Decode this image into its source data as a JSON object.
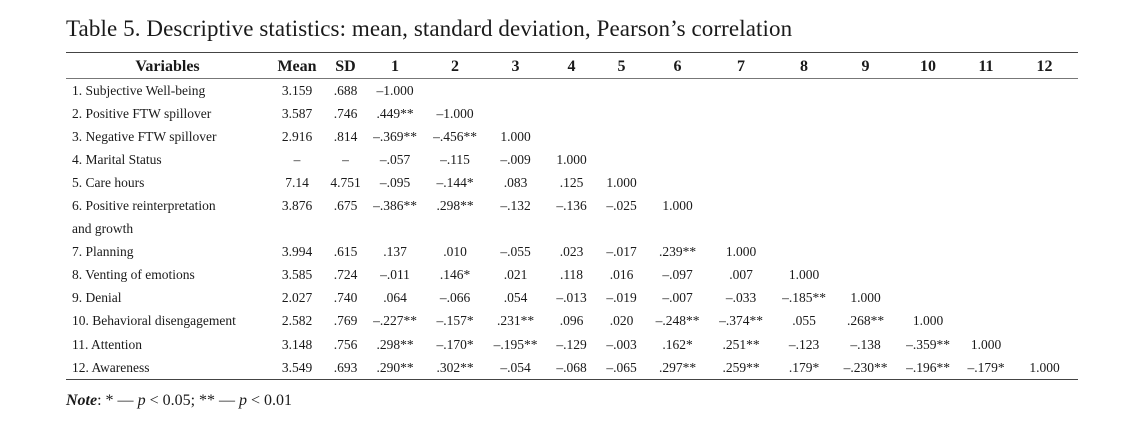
{
  "caption": "Table 5. Descriptive statistics: mean, standard deviation, Pearson’s correlation",
  "headers": [
    "Variables",
    "Mean",
    "SD",
    "1",
    "2",
    "3",
    "4",
    "5",
    "6",
    "7",
    "8",
    "9",
    "10",
    "11",
    "12"
  ],
  "rows": [
    {
      "label": "1. Subjective Well-being",
      "cells": [
        "3.159",
        ".688",
        "–1.000",
        "",
        "",
        "",
        "",
        "",
        "",
        "",
        "",
        "",
        "",
        ""
      ]
    },
    {
      "label": "2. Positive FTW spillover",
      "cells": [
        "3.587",
        ".746",
        ".449**",
        "–1.000",
        "",
        "",
        "",
        "",
        "",
        "",
        "",
        "",
        "",
        ""
      ]
    },
    {
      "label": "3. Negative FTW spillover",
      "cells": [
        "2.916",
        ".814",
        "–.369**",
        "–.456**",
        "1.000",
        "",
        "",
        "",
        "",
        "",
        "",
        "",
        "",
        ""
      ]
    },
    {
      "label": "4. Marital Status",
      "cells": [
        "–",
        "–",
        "–.057",
        "–.115",
        "–.009",
        "1.000",
        "",
        "",
        "",
        "",
        "",
        "",
        "",
        ""
      ]
    },
    {
      "label": "5. Care hours",
      "cells": [
        "7.14",
        "4.751",
        "–.095",
        "–.144*",
        ".083",
        ".125",
        "1.000",
        "",
        "",
        "",
        "",
        "",
        "",
        ""
      ]
    },
    {
      "label": "6. Positive reinterpretation",
      "cells": [
        "3.876",
        ".675",
        "–.386**",
        ".298**",
        "–.132",
        "–.136",
        "–.025",
        "1.000",
        "",
        "",
        "",
        "",
        "",
        ""
      ]
    },
    {
      "label": "and growth",
      "cells": [
        "",
        "",
        "",
        "",
        "",
        "",
        "",
        "",
        "",
        "",
        "",
        "",
        "",
        ""
      ]
    },
    {
      "label": "7. Planning",
      "cells": [
        "3.994",
        ".615",
        ".137",
        ".010",
        "–.055",
        ".023",
        "–.017",
        ".239**",
        "1.000",
        "",
        "",
        "",
        "",
        ""
      ]
    },
    {
      "label": "8. Venting of emotions",
      "cells": [
        "3.585",
        ".724",
        "–.011",
        ".146*",
        ".021",
        ".118",
        ".016",
        "–.097",
        ".007",
        "1.000",
        "",
        "",
        "",
        ""
      ]
    },
    {
      "label": "9. Denial",
      "cells": [
        "2.027",
        ".740",
        ".064",
        "–.066",
        ".054",
        "–.013",
        "–.019",
        "–.007",
        "–.033",
        "–.185**",
        "1.000",
        "",
        "",
        ""
      ]
    },
    {
      "label": "10. Behavioral disengagement",
      "cells": [
        "2.582",
        ".769",
        "–.227**",
        "–.157*",
        ".231**",
        ".096",
        ".020",
        "–.248**",
        "–.374**",
        ".055",
        ".268**",
        "1.000",
        "",
        ""
      ]
    },
    {
      "label": "11. Attention",
      "cells": [
        "3.148",
        ".756",
        ".298**",
        "–.170*",
        "–.195**",
        "–.129",
        "–.003",
        ".162*",
        ".251**",
        "–.123",
        "–.138",
        "–.359**",
        "1.000",
        ""
      ]
    },
    {
      "label": "12. Awareness",
      "cells": [
        "3.549",
        ".693",
        ".290**",
        ".302**",
        "–.054",
        "–.068",
        "–.065",
        ".297**",
        ".259**",
        ".179*",
        "–.230**",
        "–.196**",
        "–.179*",
        "1.000"
      ]
    }
  ],
  "note": {
    "label": "Note",
    "star1": ": * — ",
    "p1": "p",
    "cond1": " < 0.05; ** — ",
    "p2": "p",
    "cond2": " < 0.01"
  }
}
